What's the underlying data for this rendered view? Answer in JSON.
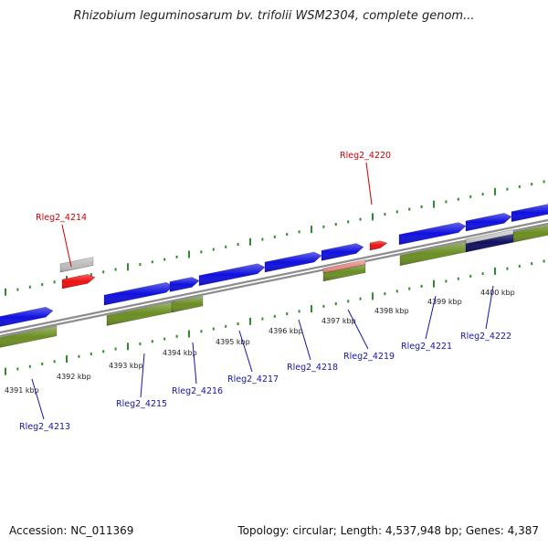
{
  "title": "Rhizobium leguminosarum bv. trifolii WSM2304, complete genom...",
  "footer": {
    "accession": "Accession: NC_011369",
    "summary": "Topology: circular; Length: 4,537,948 bp; Genes: 4,387"
  },
  "colors": {
    "forward_cds": "#1010e0",
    "reverse_cds": "#6b8e23",
    "highlight_red": "#ee1111",
    "gray_feature": "#bdbdbd",
    "pink_feature": "#e88a8a",
    "navy_feature": "#101060",
    "backbone": "#8c8c8c",
    "tick": "#2e8b2e",
    "label_red": "#cc0000",
    "label_blue": "#1515aa"
  },
  "ticks": [
    {
      "label": "4391 kbp"
    },
    {
      "label": "4392 kbp"
    },
    {
      "label": "4393 kbp"
    },
    {
      "label": "4394 kbp"
    },
    {
      "label": "4395 kbp"
    },
    {
      "label": "4396 kbp"
    },
    {
      "label": "4397 kbp"
    },
    {
      "label": "4398 kbp"
    },
    {
      "label": "4399 kbp"
    },
    {
      "label": "4400 kbp"
    }
  ],
  "gene_labels": [
    {
      "text": "Rleg2_4213",
      "color": "blue"
    },
    {
      "text": "Rleg2_4214",
      "color": "red"
    },
    {
      "text": "Rleg2_4215",
      "color": "blue"
    },
    {
      "text": "Rleg2_4216",
      "color": "blue"
    },
    {
      "text": "Rleg2_4217",
      "color": "blue"
    },
    {
      "text": "Rleg2_4218",
      "color": "blue"
    },
    {
      "text": "Rleg2_4219",
      "color": "blue"
    },
    {
      "text": "Rleg2_4220",
      "color": "red"
    },
    {
      "text": "Rleg2_4221",
      "color": "blue"
    },
    {
      "text": "Rleg2_4222",
      "color": "blue"
    }
  ]
}
